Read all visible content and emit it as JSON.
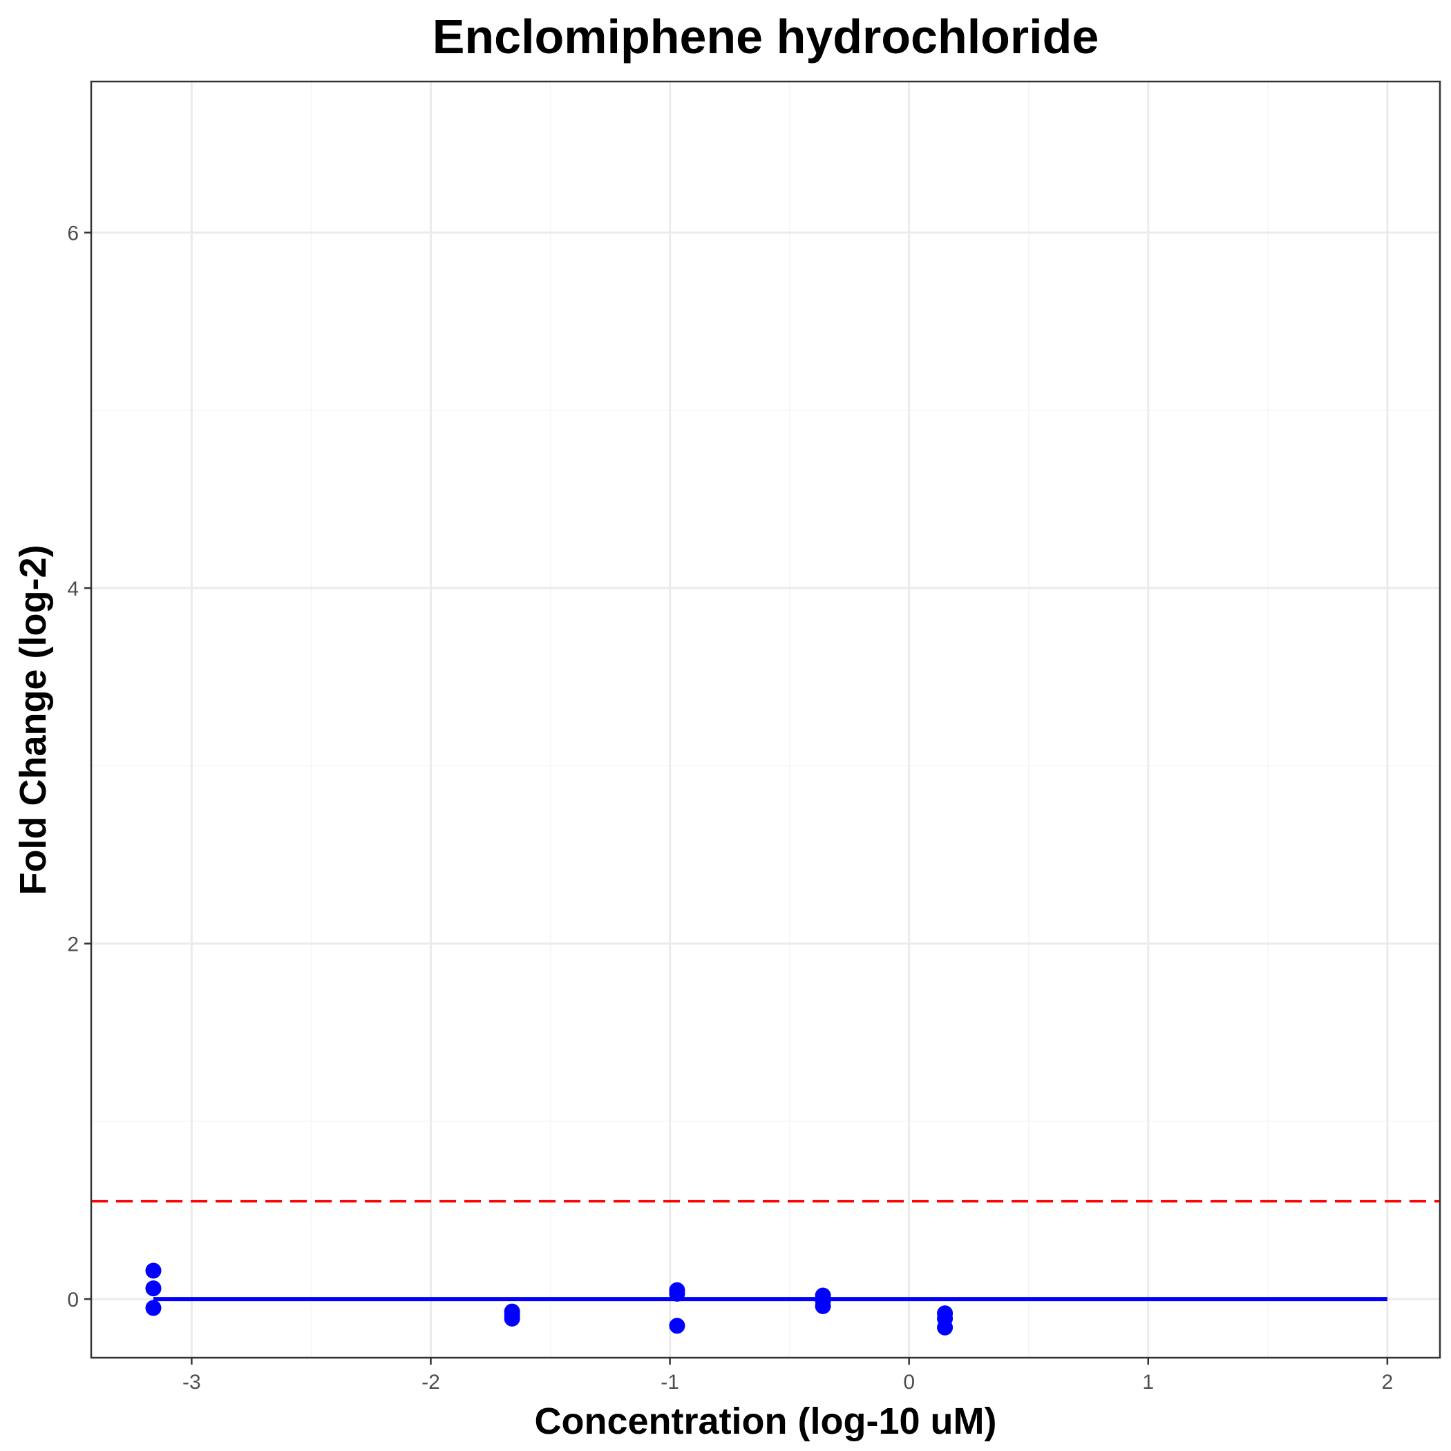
{
  "chart_data": {
    "type": "scatter",
    "title": "Enclomiphene hydrochloride",
    "xlabel": "Concentration (log-10 uM)",
    "ylabel": "Fold Change (log-2)",
    "xlim": [
      -3.42,
      2.22
    ],
    "ylim": [
      -0.33,
      6.85
    ],
    "x_ticks": [
      -3,
      -2,
      -1,
      0,
      1,
      2
    ],
    "x_tick_labels": [
      "-3",
      "-2",
      "-1",
      "0",
      "1",
      "2"
    ],
    "y_ticks": [
      0,
      2,
      4,
      6
    ],
    "y_tick_labels": [
      "0",
      "2",
      "4",
      "6"
    ],
    "grid": true,
    "points": [
      {
        "x": -3.16,
        "y": 0.16
      },
      {
        "x": -3.16,
        "y": 0.06
      },
      {
        "x": -3.16,
        "y": -0.05
      },
      {
        "x": -1.66,
        "y": -0.07
      },
      {
        "x": -1.66,
        "y": -0.09
      },
      {
        "x": -1.66,
        "y": -0.11
      },
      {
        "x": -0.97,
        "y": 0.05
      },
      {
        "x": -0.97,
        "y": 0.03
      },
      {
        "x": -0.97,
        "y": -0.15
      },
      {
        "x": -0.36,
        "y": 0.02
      },
      {
        "x": -0.36,
        "y": -0.01
      },
      {
        "x": -0.36,
        "y": -0.04
      },
      {
        "x": 0.15,
        "y": -0.08
      },
      {
        "x": 0.15,
        "y": -0.11
      },
      {
        "x": 0.15,
        "y": -0.16
      }
    ],
    "fit_line": {
      "x": [
        -3.16,
        2.0
      ],
      "y": [
        0.0,
        0.0
      ]
    },
    "threshold": {
      "y": 0.55
    },
    "colors": {
      "points": "#0000ff",
      "fit_line": "#0000ff",
      "threshold": "#ff0000",
      "grid_major": "#ebebeb",
      "grid_minor": "#f5f5f5",
      "panel_border": "#333333"
    }
  }
}
